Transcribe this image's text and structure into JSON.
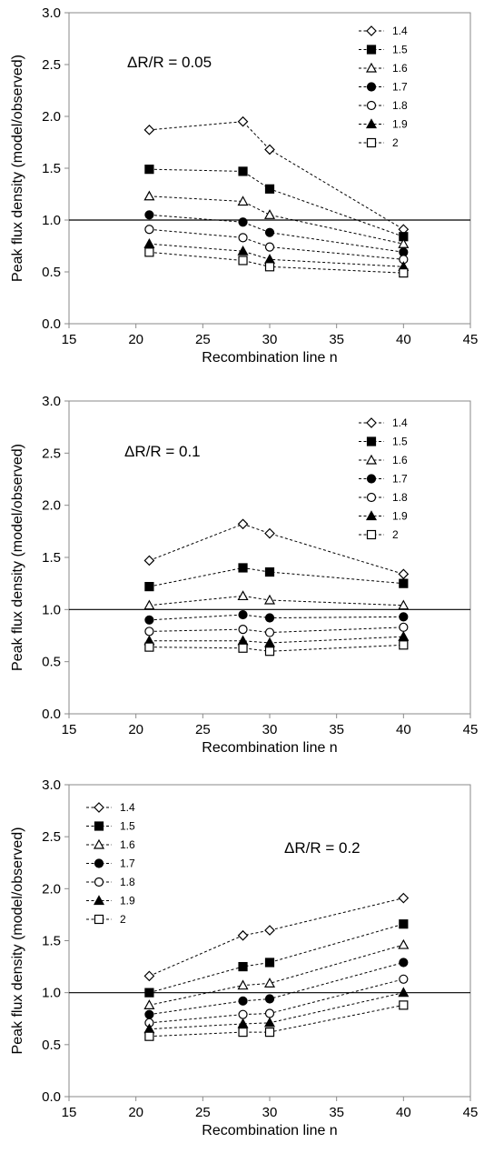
{
  "chart_data": [
    {
      "type": "line",
      "title": "",
      "annotation": "ΔR/R = 0.05",
      "xlabel": "Recombination line n",
      "ylabel": "Peak flux density (model/observed)",
      "xlim": [
        15,
        45
      ],
      "ylim": [
        0.0,
        3.0
      ],
      "xticks": [
        "15",
        "20",
        "25",
        "30",
        "35",
        "40",
        "45"
      ],
      "yticks": [
        "0.0",
        "0.5",
        "1.0",
        "1.5",
        "2.0",
        "2.5",
        "3.0"
      ],
      "reference_line_y": 1.0,
      "grid": false,
      "legend_position": "top-right",
      "x": [
        21,
        28,
        30,
        40
      ],
      "series": [
        {
          "name": "1.4",
          "marker": "diamond-open",
          "values": [
            1.87,
            1.95,
            1.68,
            0.91
          ]
        },
        {
          "name": "1.5",
          "marker": "square-filled",
          "values": [
            1.49,
            1.47,
            1.3,
            0.84
          ]
        },
        {
          "name": "1.6",
          "marker": "triangle-open",
          "values": [
            1.23,
            1.18,
            1.05,
            0.77
          ]
        },
        {
          "name": "1.7",
          "marker": "circle-filled",
          "values": [
            1.05,
            0.98,
            0.88,
            0.69
          ]
        },
        {
          "name": "1.8",
          "marker": "circle-open",
          "values": [
            0.91,
            0.83,
            0.74,
            0.62
          ]
        },
        {
          "name": "1.9",
          "marker": "triangle-filled",
          "values": [
            0.77,
            0.7,
            0.62,
            0.55
          ]
        },
        {
          "name": "2",
          "marker": "square-open",
          "values": [
            0.69,
            0.61,
            0.55,
            0.49
          ]
        }
      ]
    },
    {
      "type": "line",
      "title": "",
      "annotation": "ΔR/R = 0.1",
      "xlabel": "Recombination line n",
      "ylabel": "Peak flux density (model/observed)",
      "xlim": [
        15,
        45
      ],
      "ylim": [
        0.0,
        3.0
      ],
      "xticks": [
        "15",
        "20",
        "25",
        "30",
        "35",
        "40",
        "45"
      ],
      "yticks": [
        "0.0",
        "0.5",
        "1.0",
        "1.5",
        "2.0",
        "2.5",
        "3.0"
      ],
      "reference_line_y": 1.0,
      "grid": false,
      "legend_position": "top-right",
      "x": [
        21,
        28,
        30,
        40
      ],
      "series": [
        {
          "name": "1.4",
          "marker": "diamond-open",
          "values": [
            1.47,
            1.82,
            1.73,
            1.34
          ]
        },
        {
          "name": "1.5",
          "marker": "square-filled",
          "values": [
            1.22,
            1.4,
            1.36,
            1.25
          ]
        },
        {
          "name": "1.6",
          "marker": "triangle-open",
          "values": [
            1.04,
            1.13,
            1.09,
            1.04
          ]
        },
        {
          "name": "1.7",
          "marker": "circle-filled",
          "values": [
            0.9,
            0.95,
            0.92,
            0.93
          ]
        },
        {
          "name": "1.8",
          "marker": "circle-open",
          "values": [
            0.79,
            0.81,
            0.78,
            0.83
          ]
        },
        {
          "name": "1.9",
          "marker": "triangle-filled",
          "values": [
            0.7,
            0.7,
            0.68,
            0.74
          ]
        },
        {
          "name": "2",
          "marker": "square-open",
          "values": [
            0.64,
            0.63,
            0.6,
            0.66
          ]
        }
      ]
    },
    {
      "type": "line",
      "title": "",
      "annotation": "ΔR/R = 0.2",
      "xlabel": "Recombination line n",
      "ylabel": "Peak flux density (model/observed)",
      "xlim": [
        15,
        45
      ],
      "ylim": [
        0.0,
        3.0
      ],
      "xticks": [
        "15",
        "20",
        "25",
        "30",
        "35",
        "40",
        "45"
      ],
      "yticks": [
        "0.0",
        "0.5",
        "1.0",
        "1.5",
        "2.0",
        "2.5",
        "3.0"
      ],
      "reference_line_y": 1.0,
      "grid": false,
      "legend_position": "top-left",
      "x": [
        21,
        28,
        30,
        40
      ],
      "series": [
        {
          "name": "1.4",
          "marker": "diamond-open",
          "values": [
            1.16,
            1.55,
            1.6,
            1.91
          ]
        },
        {
          "name": "1.5",
          "marker": "square-filled",
          "values": [
            1.0,
            1.25,
            1.29,
            1.66
          ]
        },
        {
          "name": "1.6",
          "marker": "triangle-open",
          "values": [
            0.88,
            1.07,
            1.09,
            1.46
          ]
        },
        {
          "name": "1.7",
          "marker": "circle-filled",
          "values": [
            0.79,
            0.92,
            0.94,
            1.29
          ]
        },
        {
          "name": "1.8",
          "marker": "circle-open",
          "values": [
            0.71,
            0.79,
            0.8,
            1.13
          ]
        },
        {
          "name": "1.9",
          "marker": "triangle-filled",
          "values": [
            0.65,
            0.7,
            0.71,
            1.0
          ]
        },
        {
          "name": "2",
          "marker": "square-open",
          "values": [
            0.58,
            0.62,
            0.62,
            0.88
          ]
        }
      ]
    }
  ]
}
